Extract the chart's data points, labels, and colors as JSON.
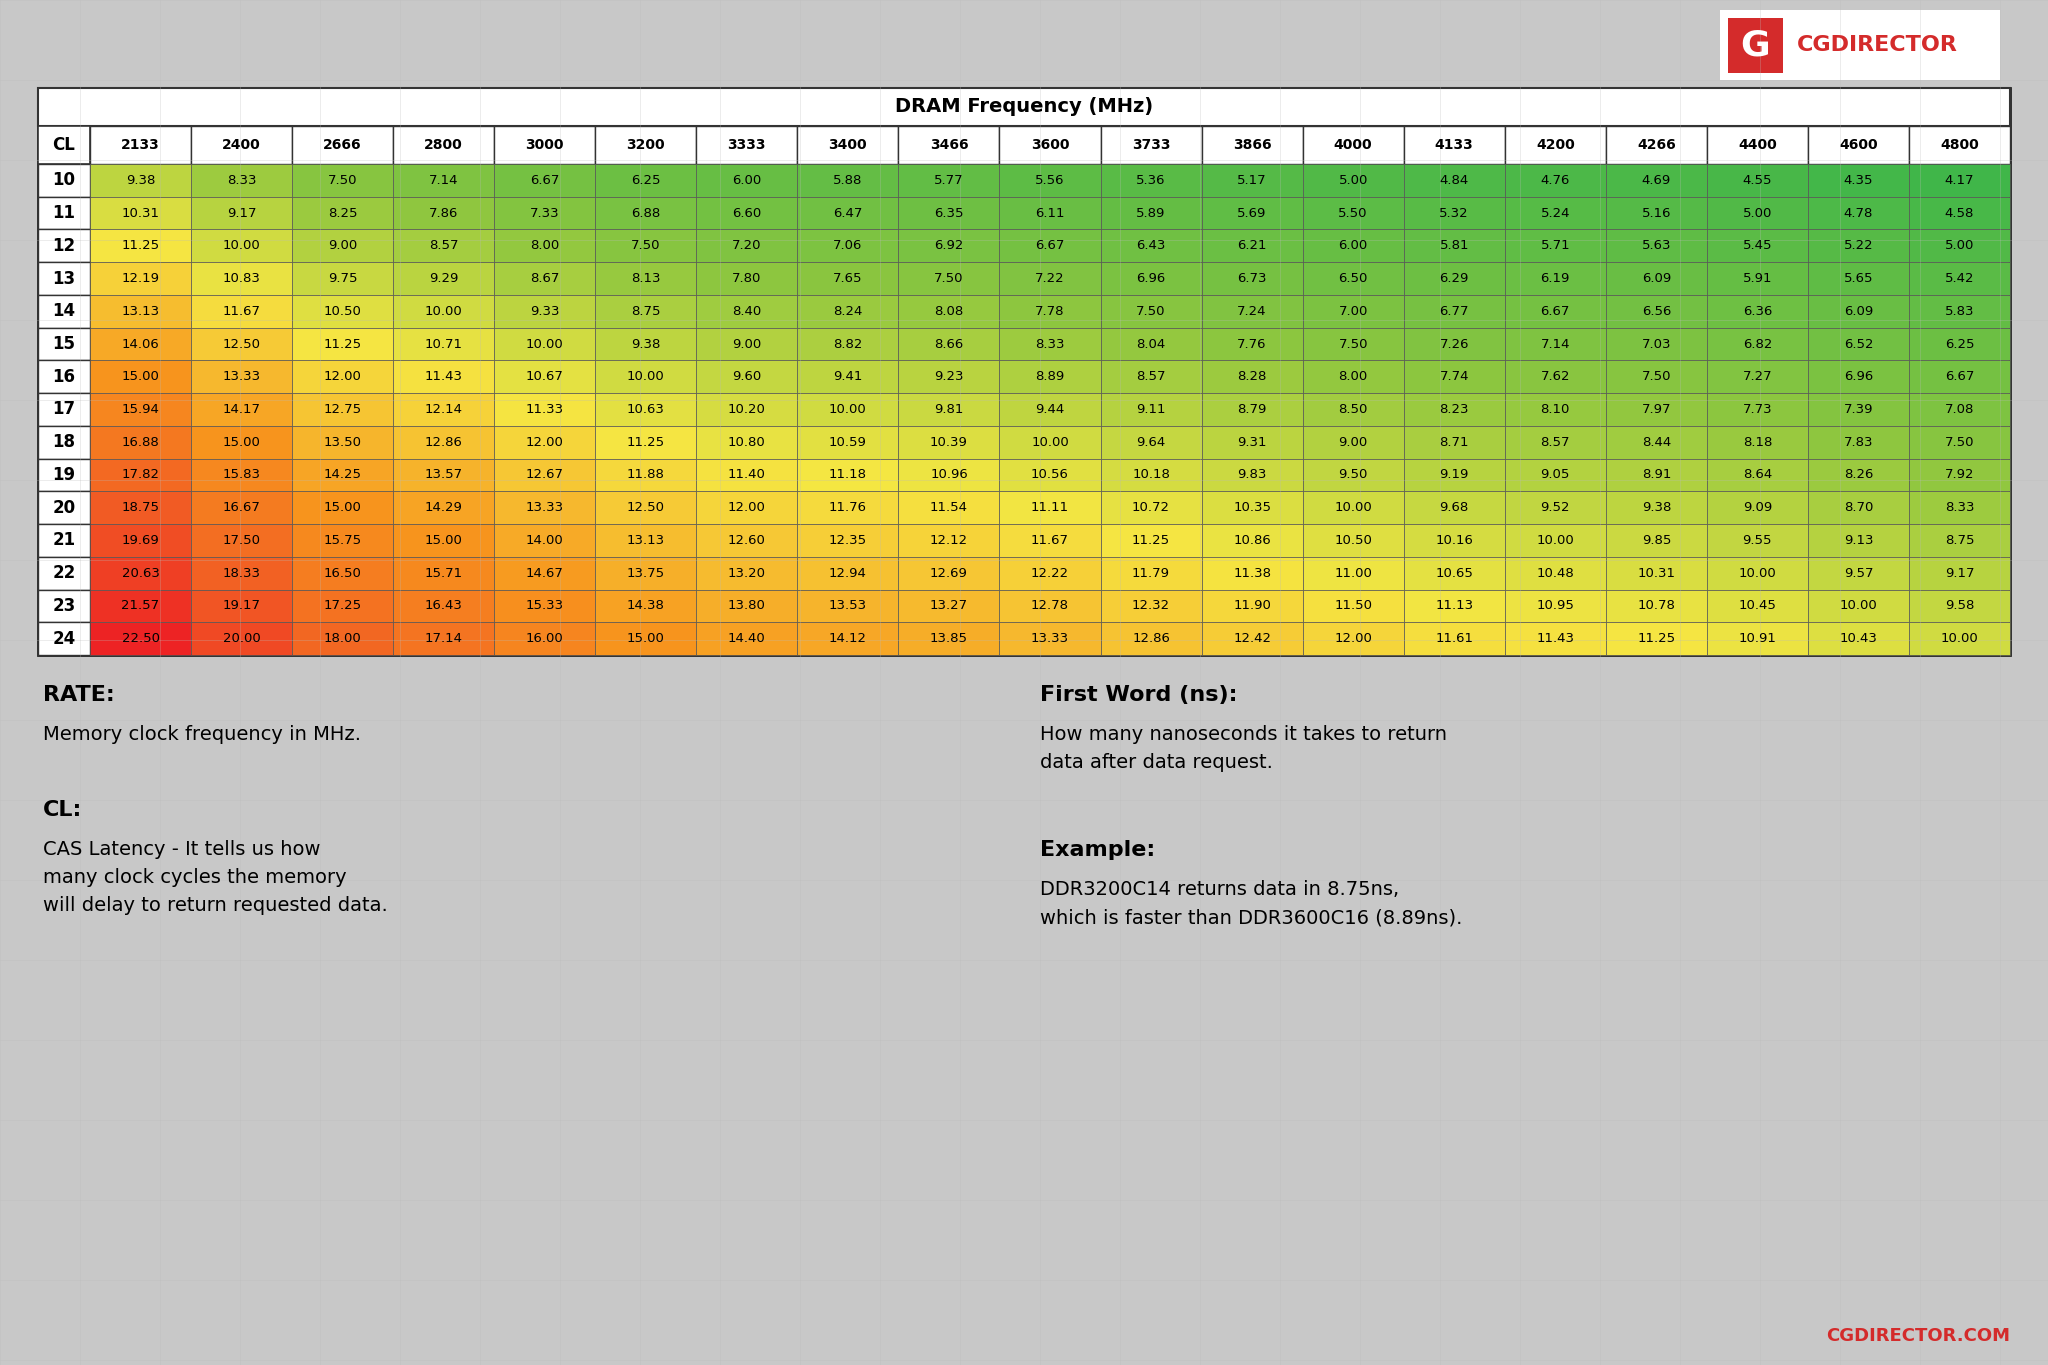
{
  "title": "DRAM Frequency (MHz)",
  "cl_values": [
    10,
    11,
    12,
    13,
    14,
    15,
    16,
    17,
    18,
    19,
    20,
    21,
    22,
    23,
    24
  ],
  "freq_values": [
    2133,
    2400,
    2666,
    2800,
    3000,
    3200,
    3333,
    3400,
    3466,
    3600,
    3733,
    3866,
    4000,
    4133,
    4200,
    4266,
    4400,
    4600,
    4800
  ],
  "table_data": [
    [
      9.38,
      8.33,
      7.5,
      7.14,
      6.67,
      6.25,
      6.0,
      5.88,
      5.77,
      5.56,
      5.36,
      5.17,
      5.0,
      4.84,
      4.76,
      4.69,
      4.55,
      4.35,
      4.17
    ],
    [
      10.31,
      9.17,
      8.25,
      7.86,
      7.33,
      6.88,
      6.6,
      6.47,
      6.35,
      6.11,
      5.89,
      5.69,
      5.5,
      5.32,
      5.24,
      5.16,
      5.0,
      4.78,
      4.58
    ],
    [
      11.25,
      10.0,
      9.0,
      8.57,
      8.0,
      7.5,
      7.2,
      7.06,
      6.92,
      6.67,
      6.43,
      6.21,
      6.0,
      5.81,
      5.71,
      5.63,
      5.45,
      5.22,
      5.0
    ],
    [
      12.19,
      10.83,
      9.75,
      9.29,
      8.67,
      8.13,
      7.8,
      7.65,
      7.5,
      7.22,
      6.96,
      6.73,
      6.5,
      6.29,
      6.19,
      6.09,
      5.91,
      5.65,
      5.42
    ],
    [
      13.13,
      11.67,
      10.5,
      10.0,
      9.33,
      8.75,
      8.4,
      8.24,
      8.08,
      7.78,
      7.5,
      7.24,
      7.0,
      6.77,
      6.67,
      6.56,
      6.36,
      6.09,
      5.83
    ],
    [
      14.06,
      12.5,
      11.25,
      10.71,
      10.0,
      9.38,
      9.0,
      8.82,
      8.66,
      8.33,
      8.04,
      7.76,
      7.5,
      7.26,
      7.14,
      7.03,
      6.82,
      6.52,
      6.25
    ],
    [
      15.0,
      13.33,
      12.0,
      11.43,
      10.67,
      10.0,
      9.6,
      9.41,
      9.23,
      8.89,
      8.57,
      8.28,
      8.0,
      7.74,
      7.62,
      7.5,
      7.27,
      6.96,
      6.67
    ],
    [
      15.94,
      14.17,
      12.75,
      12.14,
      11.33,
      10.63,
      10.2,
      10.0,
      9.81,
      9.44,
      9.11,
      8.79,
      8.5,
      8.23,
      8.1,
      7.97,
      7.73,
      7.39,
      7.08
    ],
    [
      16.88,
      15.0,
      13.5,
      12.86,
      12.0,
      11.25,
      10.8,
      10.59,
      10.39,
      10.0,
      9.64,
      9.31,
      9.0,
      8.71,
      8.57,
      8.44,
      8.18,
      7.83,
      7.5
    ],
    [
      17.82,
      15.83,
      14.25,
      13.57,
      12.67,
      11.88,
      11.4,
      11.18,
      10.96,
      10.56,
      10.18,
      9.83,
      9.5,
      9.19,
      9.05,
      8.91,
      8.64,
      8.26,
      7.92
    ],
    [
      18.75,
      16.67,
      15.0,
      14.29,
      13.33,
      12.5,
      12.0,
      11.76,
      11.54,
      11.11,
      10.72,
      10.35,
      10.0,
      9.68,
      9.52,
      9.38,
      9.09,
      8.7,
      8.33
    ],
    [
      19.69,
      17.5,
      15.75,
      15.0,
      14.0,
      13.13,
      12.6,
      12.35,
      12.12,
      11.67,
      11.25,
      10.86,
      10.5,
      10.16,
      10.0,
      9.85,
      9.55,
      9.13,
      8.75
    ],
    [
      20.63,
      18.33,
      16.5,
      15.71,
      14.67,
      13.75,
      13.2,
      12.94,
      12.69,
      12.22,
      11.79,
      11.38,
      11.0,
      10.65,
      10.48,
      10.31,
      10.0,
      9.57,
      9.17
    ],
    [
      21.57,
      19.17,
      17.25,
      16.43,
      15.33,
      14.38,
      13.8,
      13.53,
      13.27,
      12.78,
      12.32,
      11.9,
      11.5,
      11.13,
      10.95,
      10.78,
      10.45,
      10.0,
      9.58
    ],
    [
      22.5,
      20.0,
      18.0,
      17.14,
      16.0,
      15.0,
      14.4,
      14.12,
      13.85,
      13.33,
      12.86,
      12.42,
      12.0,
      11.61,
      11.43,
      11.25,
      10.91,
      10.43,
      10.0
    ]
  ],
  "bg_color": "#c8c8c8",
  "brand_color": "#d42b2b",
  "brand_text": "CGDIRECTOR.COM",
  "val_min": 4.0,
  "val_max": 23.0,
  "color_stops": [
    [
      0.0,
      [
        0.235,
        0.71,
        0.29
      ]
    ],
    [
      0.2,
      [
        0.553,
        0.776,
        0.247
      ]
    ],
    [
      0.38,
      [
        0.961,
        0.902,
        0.259
      ]
    ],
    [
      0.58,
      [
        0.969,
        0.58,
        0.114
      ]
    ],
    [
      0.78,
      [
        0.945,
        0.353,
        0.141
      ]
    ],
    [
      1.0,
      [
        0.929,
        0.11,
        0.141
      ]
    ]
  ]
}
